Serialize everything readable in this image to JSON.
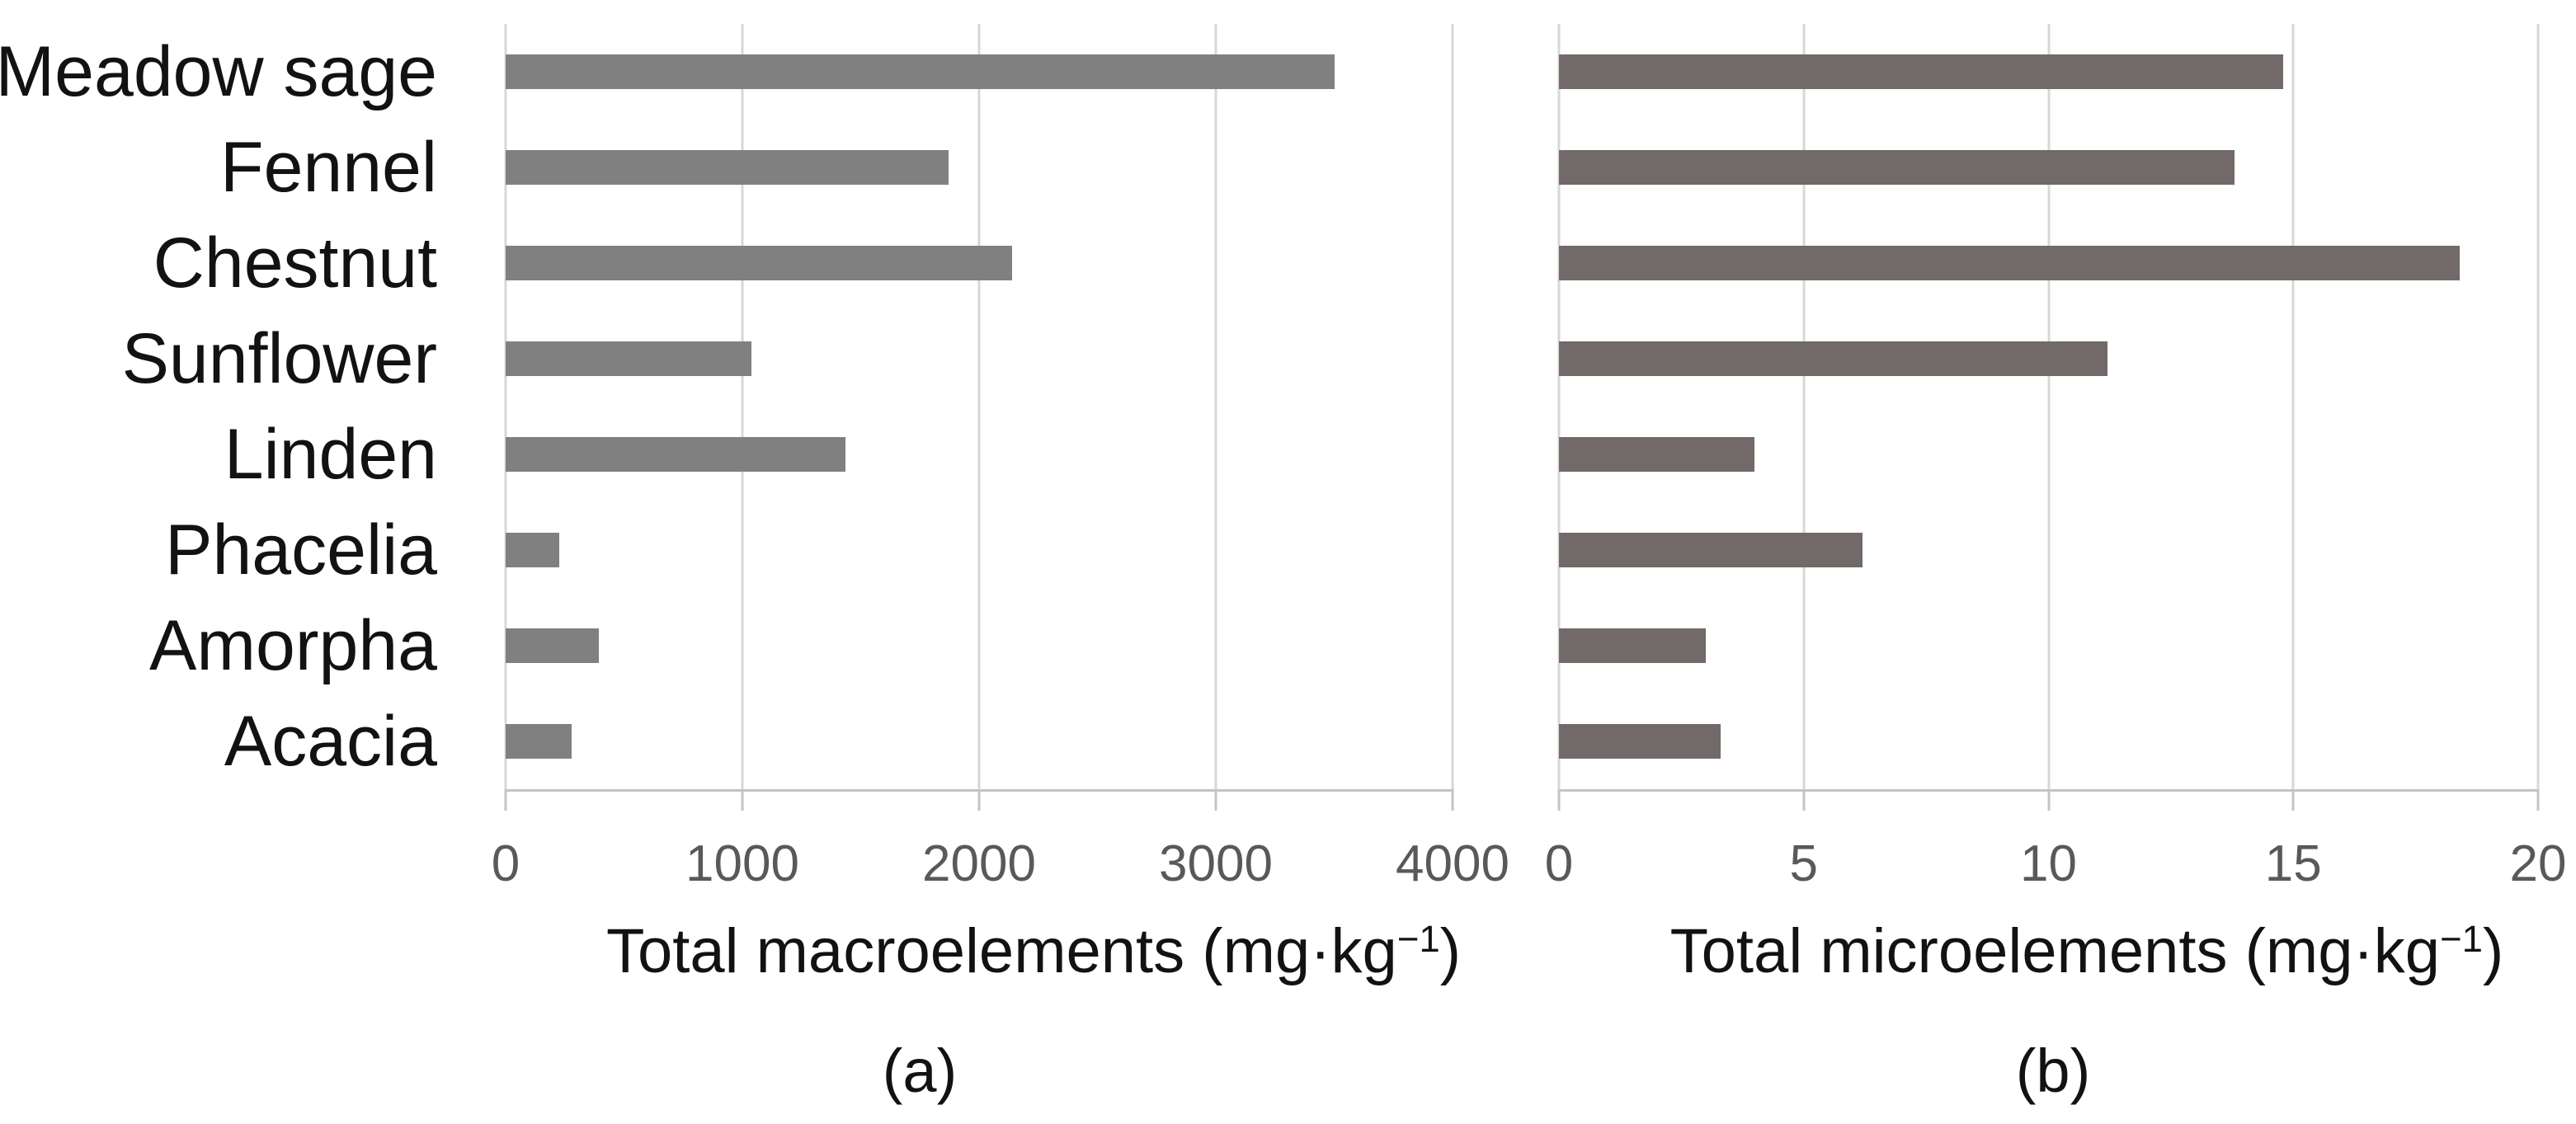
{
  "figure": {
    "background": "#ffffff",
    "text_color": "#121212",
    "tick_label_color": "#595959",
    "gridline_color": "#d7d7d7",
    "axis_line_color": "#c4c4c4"
  },
  "chart_data": [
    {
      "type": "bar",
      "orientation": "horizontal",
      "panel_label": "(a)",
      "title_main": "Total macroelements (mg·kg",
      "title_sup": "−1",
      "title_close": ")",
      "title_full": "Total macroelements (mg·kg−1)",
      "categories": [
        "Meadow sage",
        "Fennel",
        "Chestnut",
        "Sunflower",
        "Linden",
        "Phacelia",
        "Amorpha",
        "Acacia"
      ],
      "values": [
        3500,
        1870,
        2140,
        1040,
        1435,
        225,
        395,
        280
      ],
      "xlim": [
        0,
        4000
      ],
      "xticks": [
        0,
        1000,
        2000,
        3000,
        4000
      ],
      "bar_color": "#808080",
      "grid": true,
      "legend": "none",
      "show_category_labels": true
    },
    {
      "type": "bar",
      "orientation": "horizontal",
      "panel_label": "(b)",
      "title_main": "Total microelements (mg·kg",
      "title_sup": "−1",
      "title_close": ")",
      "title_full": "Total microelements (mg·kg−1)",
      "categories": [
        "Meadow sage",
        "Fennel",
        "Chestnut",
        "Sunflower",
        "Linden",
        "Phacelia",
        "Amorpha",
        "Acacia"
      ],
      "values": [
        14.8,
        13.8,
        18.4,
        11.2,
        4.0,
        6.2,
        3.0,
        3.3
      ],
      "xlim": [
        0,
        20
      ],
      "xticks": [
        0,
        5,
        10,
        15,
        20
      ],
      "bar_color": "#716a69",
      "grid": true,
      "legend": "none",
      "show_category_labels": false
    }
  ]
}
